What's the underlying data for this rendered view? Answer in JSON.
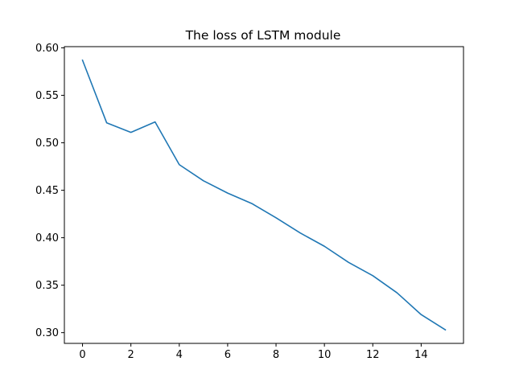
{
  "chart_data": {
    "type": "line",
    "title": "The loss of LSTM module",
    "xlabel": "",
    "ylabel": "",
    "xlim": [
      -0.75,
      15.75
    ],
    "ylim": [
      0.2887,
      0.6013
    ],
    "xticks": [
      0,
      2,
      4,
      6,
      8,
      10,
      12,
      14
    ],
    "xtick_labels": [
      "0",
      "2",
      "4",
      "6",
      "8",
      "10",
      "12",
      "14"
    ],
    "yticks": [
      0.3,
      0.35,
      0.4,
      0.45,
      0.5,
      0.55,
      0.6
    ],
    "ytick_labels": [
      "0.30",
      "0.35",
      "0.40",
      "0.45",
      "0.50",
      "0.55",
      "0.60"
    ],
    "grid": false,
    "legend": "none",
    "series": [
      {
        "color": "#1f77b4",
        "x": [
          0,
          1,
          2,
          3,
          4,
          5,
          6,
          7,
          8,
          9,
          10,
          11,
          12,
          13,
          14,
          15
        ],
        "values": [
          0.587,
          0.521,
          0.511,
          0.522,
          0.477,
          0.46,
          0.447,
          0.436,
          0.421,
          0.405,
          0.391,
          0.374,
          0.36,
          0.342,
          0.319,
          0.303
        ]
      }
    ]
  }
}
